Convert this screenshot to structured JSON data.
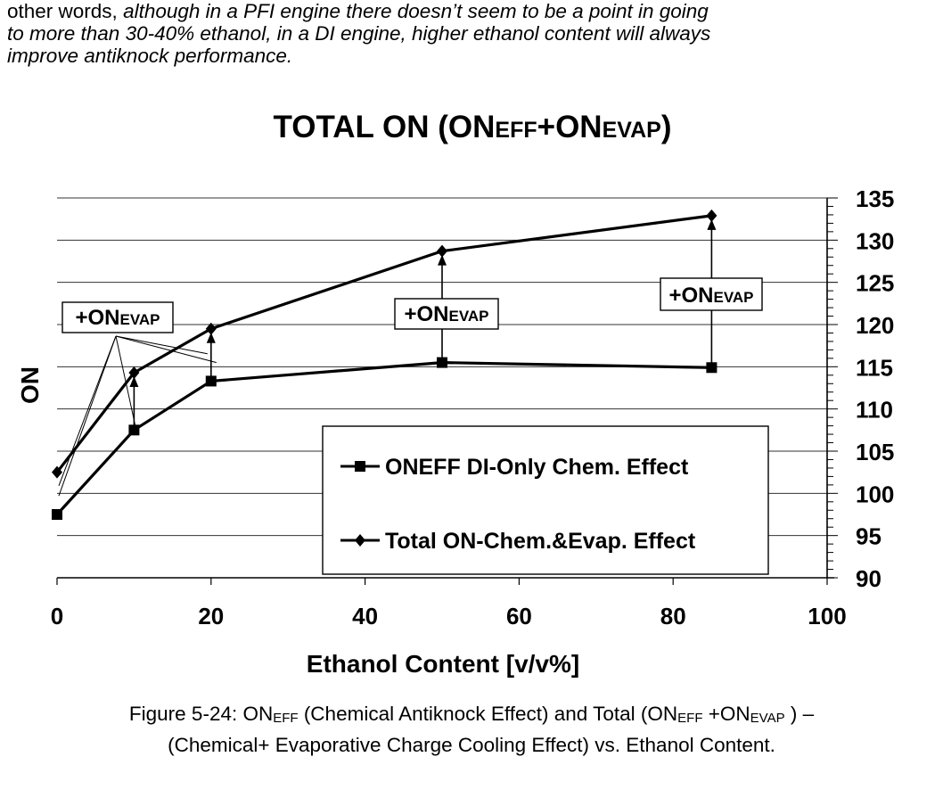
{
  "intro": {
    "line1_plain": "other words, ",
    "line1_italic": "although in a PFI engine there doesn’t seem to be a point in going",
    "line2": "to more than 30-40% ethanol, in a DI engine, higher ethanol content will always",
    "line3": "improve antiknock performance."
  },
  "chart_data": {
    "type": "line",
    "title": {
      "main": "TOTAL ON (ON",
      "sub1": "EFF",
      "plus": "+ON",
      "sub2": "EVAP",
      "close": ")"
    },
    "xlabel": "Ethanol Content [v/v%]",
    "ylabel": "ON",
    "xlim": [
      0,
      100
    ],
    "ylim": [
      90,
      135
    ],
    "x_ticks": [
      "0",
      "20",
      "40",
      "60",
      "80",
      "100"
    ],
    "y_ticks": [
      "90",
      "95",
      "100",
      "105",
      "110",
      "115",
      "120",
      "125",
      "130",
      "135"
    ],
    "x_tick_values": [
      0,
      20,
      40,
      60,
      80,
      100
    ],
    "y_tick_values": [
      90,
      95,
      100,
      105,
      110,
      115,
      120,
      125,
      130,
      135
    ],
    "y_axis_side": "right",
    "grid": "horizontal",
    "legend_position": "lower-right",
    "series": [
      {
        "name": "ONEFF DI-Only Chem. Effect",
        "marker": "square",
        "x": [
          0,
          10,
          20,
          50,
          85
        ],
        "y": [
          97.5,
          107.5,
          113.3,
          115.5,
          114.9
        ]
      },
      {
        "name": "Total ON-Chem.&Evap. Effect",
        "marker": "diamond",
        "x": [
          0,
          10,
          20,
          50,
          85
        ],
        "y": [
          102.5,
          114.3,
          119.5,
          128.7,
          132.9
        ]
      }
    ],
    "annotations": [
      {
        "text": "+ON",
        "sub": "EVAP"
      },
      {
        "text": "+ON",
        "sub": "EVAP"
      },
      {
        "text": "+ON",
        "sub": "EVAP"
      }
    ]
  },
  "caption": {
    "line1_a": "Figure 5-24: ON",
    "line1_sub1": "EFF",
    "line1_b": " (Chemical Antiknock Effect) and Total (ON",
    "line1_sub2": "EFF",
    "line1_c": " +ON",
    "line1_sub3": "EVAP",
    "line1_d": " ) –",
    "line2": "(Chemical+ Evaporative Charge Cooling Effect) vs. Ethanol Content."
  }
}
